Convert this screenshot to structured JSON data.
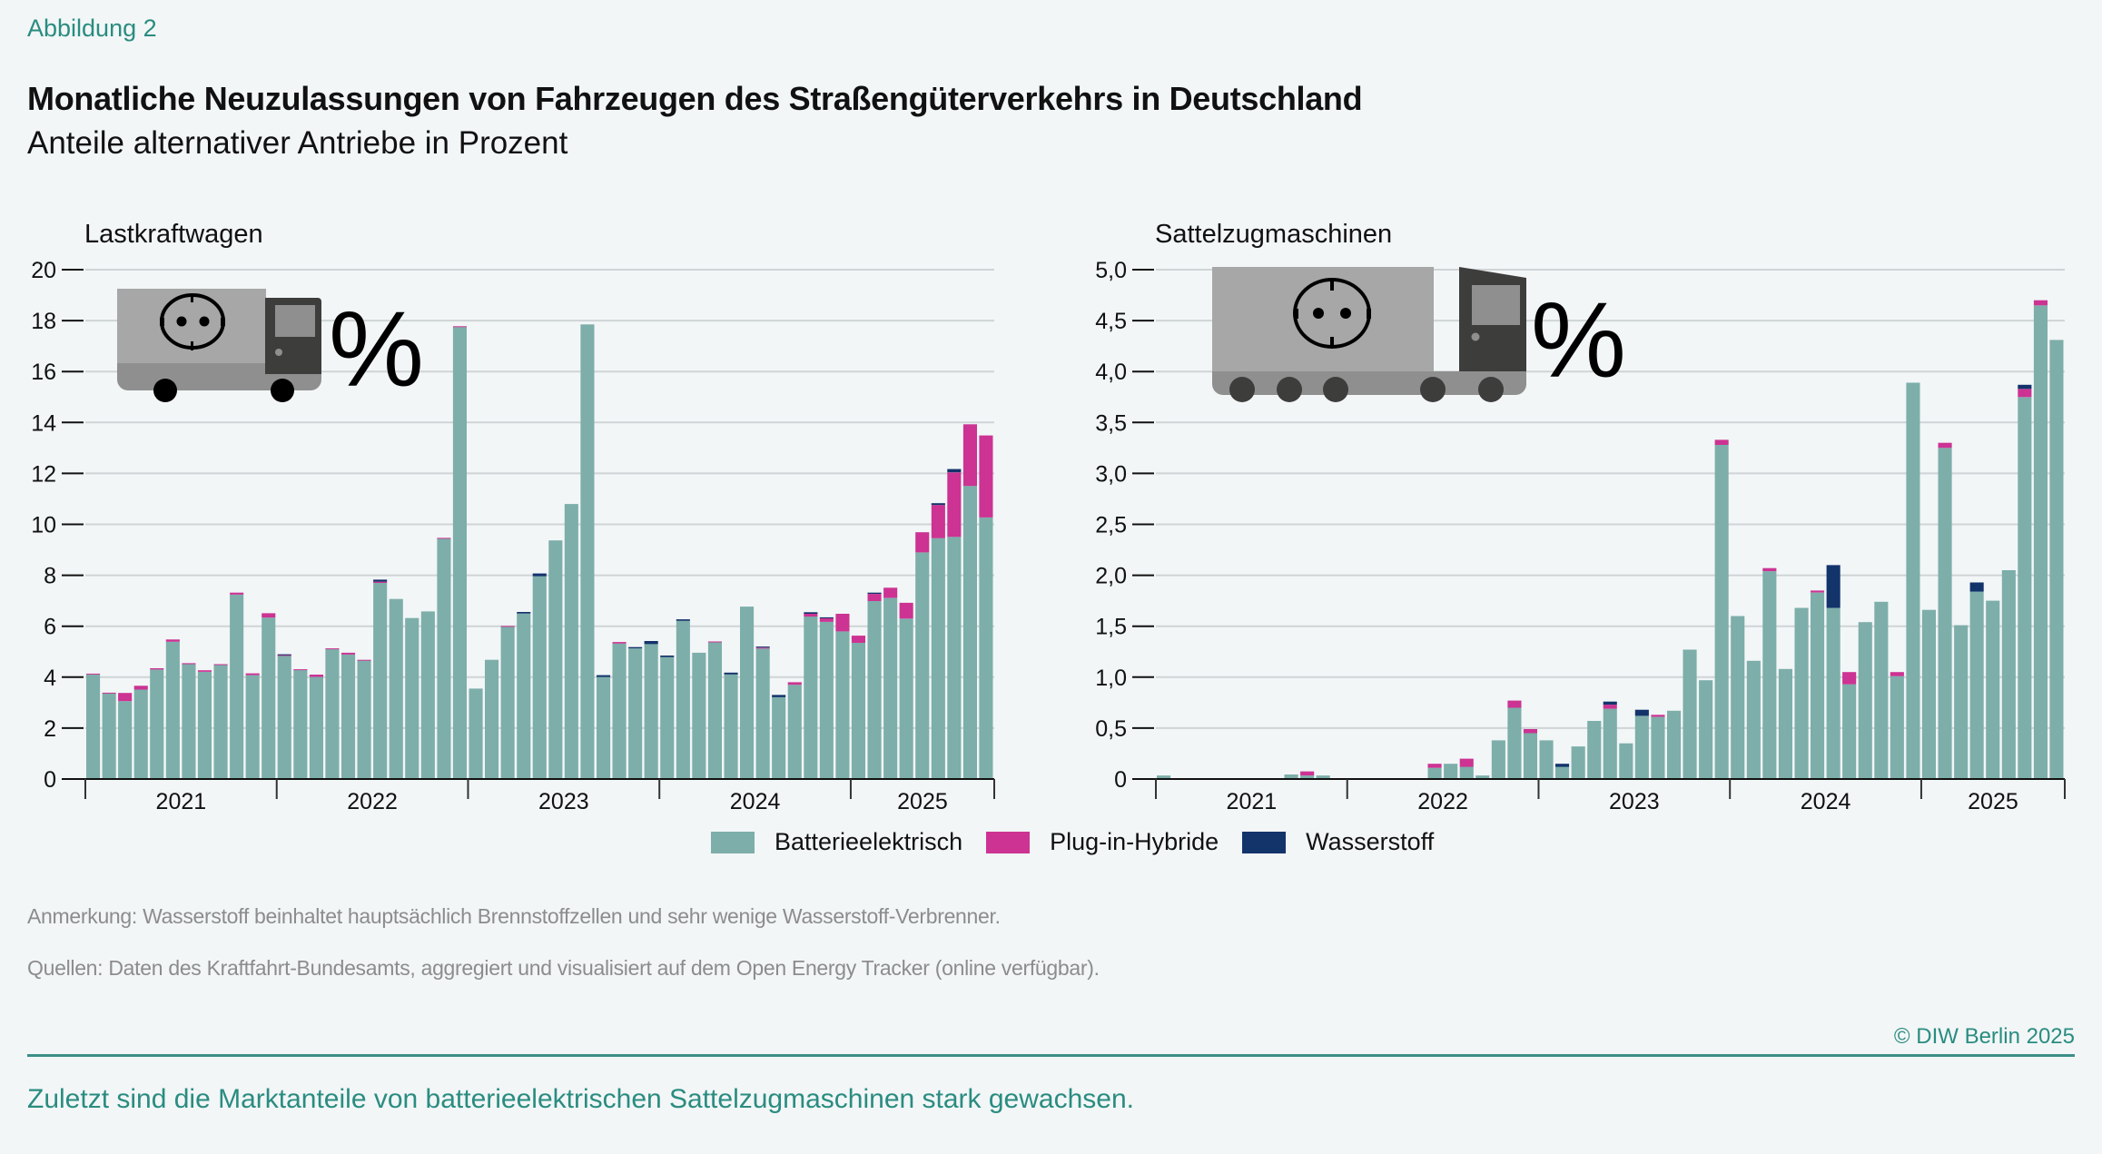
{
  "figure_label": "Abbildung 2",
  "title": "Monatliche Neuzulassungen von Fahrzeugen des Straßengüterverkehrs in Deutschland",
  "subtitle": "Anteile alternativer Antriebe in Prozent",
  "colors": {
    "bev": "#7daeaa",
    "phev": "#cc3393",
    "h2": "#13336b",
    "accent": "#2a8c80"
  },
  "legend": [
    {
      "label": "Batterieelektrisch",
      "color": "#7daeaa"
    },
    {
      "label": "Plug-in-Hybride",
      "color": "#cc3393"
    },
    {
      "label": "Wasserstoff",
      "color": "#13336b"
    }
  ],
  "icons": {
    "left": "electric-truck-icon",
    "right": "electric-semi-truck-icon",
    "percent": "%"
  },
  "chart_data": [
    {
      "type": "bar",
      "stacked": true,
      "title": "Lastkraftwagen",
      "ylim": [
        0,
        20
      ],
      "yticks": [
        0,
        2,
        4,
        6,
        8,
        10,
        12,
        14,
        16,
        18,
        20
      ],
      "ytick_labels": [
        "0",
        "2",
        "4",
        "6",
        "8",
        "10",
        "12",
        "14",
        "16",
        "18",
        "20"
      ],
      "xtick_labels": [
        "2021",
        "2022",
        "2023",
        "2024",
        "2025"
      ],
      "x_range": [
        "2021-01",
        "2025-09"
      ],
      "grid": true,
      "series": [
        {
          "name": "Batterieelektrisch",
          "values": [
            4.11,
            3.37,
            3.06,
            3.51,
            4.3,
            5.39,
            4.51,
            4.21,
            4.49,
            7.24,
            4.08,
            6.34,
            4.85,
            4.28,
            4.01,
            5.1,
            4.89,
            4.66,
            7.7,
            7.07,
            6.32,
            6.58,
            9.45,
            17.75,
            3.55,
            4.68,
            5.99,
            6.5,
            7.96,
            9.37,
            10.8,
            17.85,
            4.01,
            5.32,
            5.13,
            5.3,
            4.79,
            6.21,
            4.96,
            5.37,
            4.11,
            6.77,
            5.14,
            3.21,
            3.7,
            6.38,
            6.17,
            5.8,
            5.35,
            6.99,
            7.11,
            6.3,
            8.9,
            9.46,
            9.51,
            11.51,
            10.27
          ]
        },
        {
          "name": "Plug-in-Hybride",
          "values": [
            0.03,
            0.02,
            0.32,
            0.15,
            0.05,
            0.09,
            0.04,
            0.06,
            0.02,
            0.08,
            0.07,
            0.17,
            0.02,
            0.03,
            0.09,
            0.03,
            0.07,
            0.02,
            0.05,
            0,
            0,
            0,
            0.02,
            0.03,
            0,
            0,
            0.02,
            0,
            0,
            0,
            0,
            0,
            0,
            0.06,
            0,
            0,
            0,
            0,
            0,
            0.03,
            0,
            0,
            0.02,
            0,
            0.1,
            0.11,
            0.14,
            0.69,
            0.28,
            0.28,
            0.4,
            0.62,
            0.79,
            1.3,
            2.53,
            2.42,
            3.22
          ]
        },
        {
          "name": "Wasserstoff",
          "values": [
            0,
            0,
            0,
            0,
            0,
            0,
            0,
            0,
            0,
            0,
            0,
            0,
            0.03,
            0,
            0,
            0,
            0,
            0,
            0.08,
            0,
            0,
            0,
            0,
            0,
            0,
            0,
            0,
            0.06,
            0.11,
            0,
            0,
            0,
            0.07,
            0,
            0.05,
            0.12,
            0.06,
            0.06,
            0,
            0,
            0.07,
            0,
            0.04,
            0.09,
            0,
            0.06,
            0.04,
            0,
            0,
            0.05,
            0,
            0,
            0,
            0.07,
            0.13,
            0,
            0
          ]
        }
      ]
    },
    {
      "type": "bar",
      "stacked": true,
      "title": "Sattelzugmaschinen",
      "ylim": [
        0,
        5
      ],
      "yticks": [
        0,
        0.5,
        1,
        1.5,
        2,
        2.5,
        3,
        3.5,
        4,
        4.5,
        5
      ],
      "ytick_labels": [
        "0",
        "0,5",
        "1,0",
        "1,5",
        "2,0",
        "2,5",
        "3,0",
        "3,5",
        "4,0",
        "4,5",
        "5,0"
      ],
      "xtick_labels": [
        "2021",
        "2022",
        "2023",
        "2024",
        "2025"
      ],
      "x_range": [
        "2021-01",
        "2025-09"
      ],
      "grid": true,
      "series": [
        {
          "name": "Batterieelektrisch",
          "values": [
            0.035,
            0,
            0,
            0,
            0,
            0,
            0,
            0,
            0.045,
            0.035,
            0.035,
            0,
            0,
            0,
            0,
            0,
            0,
            0.11,
            0.15,
            0.12,
            0.035,
            0.38,
            0.7,
            0.45,
            0.38,
            0.12,
            0.32,
            0.57,
            0.69,
            0.35,
            0.62,
            0.61,
            0.67,
            1.27,
            0.97,
            3.28,
            1.6,
            1.16,
            2.04,
            1.08,
            1.68,
            1.83,
            1.68,
            0.93,
            1.54,
            1.74,
            1.01,
            3.89,
            1.66,
            3.25,
            1.51,
            1.84,
            1.75,
            2.05,
            3.75,
            4.65,
            4.31
          ]
        },
        {
          "name": "Plug-in-Hybride",
          "values": [
            0,
            0,
            0,
            0,
            0,
            0,
            0,
            0,
            0,
            0.04,
            0,
            0,
            0,
            0,
            0,
            0,
            0,
            0.04,
            0,
            0.08,
            0,
            0,
            0.07,
            0.04,
            0,
            0,
            0,
            0,
            0.04,
            0,
            0,
            0.02,
            0,
            0,
            0,
            0.05,
            0,
            0,
            0.03,
            0,
            0,
            0.02,
            0,
            0.12,
            0,
            0,
            0.04,
            0,
            0,
            0.05,
            0,
            0,
            0,
            0,
            0.08,
            0.05,
            0
          ]
        },
        {
          "name": "Wasserstoff",
          "values": [
            0,
            0,
            0,
            0,
            0,
            0,
            0,
            0,
            0,
            0,
            0,
            0,
            0,
            0,
            0,
            0,
            0,
            0,
            0,
            0,
            0,
            0,
            0,
            0,
            0,
            0.03,
            0,
            0,
            0.03,
            0,
            0.06,
            0,
            0,
            0,
            0,
            0,
            0,
            0,
            0,
            0,
            0,
            0,
            0.42,
            0,
            0,
            0,
            0,
            0,
            0,
            0,
            0,
            0.09,
            0,
            0,
            0.04,
            0,
            0
          ]
        }
      ]
    }
  ],
  "notes": {
    "remark": "Anmerkung: Wasserstoff beinhaltet hauptsächlich Brennstoffzellen und sehr wenige Wasserstoff-Verbrenner.",
    "sources": "Quellen: Daten des Kraftfahrt-Bundesamts, aggregiert und visualisiert auf dem Open Energy Tracker (online verfügbar)."
  },
  "copyright": "© DIW Berlin 2025",
  "takeaway": "Zuletzt sind die Marktanteile von batterieelektrischen Sattelzugmaschinen stark gewachsen."
}
